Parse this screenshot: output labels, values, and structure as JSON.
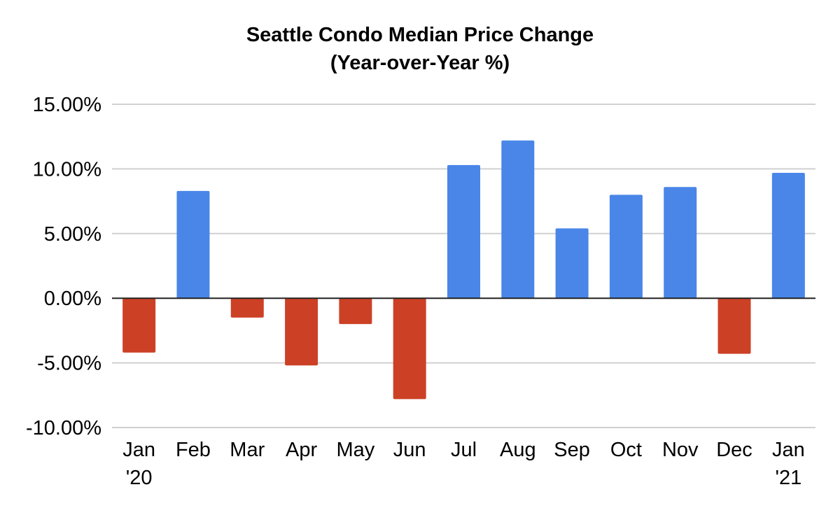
{
  "chart_data": {
    "type": "bar",
    "title": "Seattle Condo Median Price Change",
    "subtitle": "(Year-over-Year %)",
    "categories": [
      [
        "Jan",
        "'20"
      ],
      [
        "Feb"
      ],
      [
        "Mar"
      ],
      [
        "Apr"
      ],
      [
        "May"
      ],
      [
        "Jun"
      ],
      [
        "Jul"
      ],
      [
        "Aug"
      ],
      [
        "Sep"
      ],
      [
        "Oct"
      ],
      [
        "Nov"
      ],
      [
        "Dec"
      ],
      [
        "Jan",
        "'21"
      ]
    ],
    "values": [
      -4.2,
      8.3,
      -1.5,
      -5.2,
      -2.0,
      -7.8,
      10.3,
      12.2,
      5.4,
      8.0,
      8.6,
      -4.3,
      9.7
    ],
    "ylim": [
      -10,
      15
    ],
    "yticks": [
      15,
      10,
      5,
      0,
      -5,
      -10
    ],
    "ytick_labels": [
      "15.00%",
      "10.00%",
      "5.00%",
      "0.00%",
      "-5.00%",
      "-10.00%"
    ],
    "grid": true,
    "positive_color": "#4A86E8",
    "negative_color": "#CC4125",
    "gridline_color": "#d0d0d0",
    "zero_line_color": "#222222"
  }
}
